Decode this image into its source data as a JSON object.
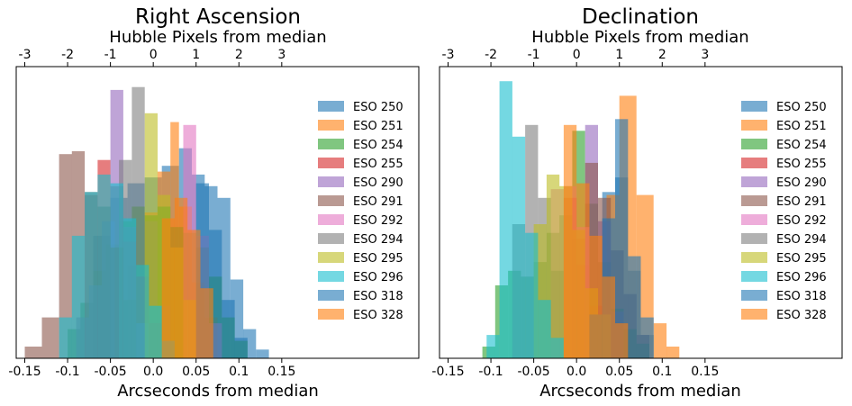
{
  "chart_data": [
    {
      "type": "histogram",
      "title": "Right Ascension",
      "xlabel": "Arcseconds from median",
      "top_xlabel": "Hubble Pixels from median",
      "xlim": [
        -0.16,
        0.31
      ],
      "ylim": [
        0,
        1.0
      ],
      "x_ticks": [
        {
          "value": -0.15,
          "label": "-0.15"
        },
        {
          "value": -0.1,
          "label": "-0.1"
        },
        {
          "value": -0.05,
          "label": "-0.05"
        },
        {
          "value": 0.0,
          "label": "0.0"
        },
        {
          "value": 0.05,
          "label": "0.05"
        },
        {
          "value": 0.1,
          "label": "0.1"
        },
        {
          "value": 0.15,
          "label": "0.15"
        }
      ],
      "top_ticks": [
        {
          "value": -0.15,
          "label": "-3"
        },
        {
          "value": -0.1,
          "label": "-2"
        },
        {
          "value": -0.05,
          "label": "-1"
        },
        {
          "value": 0.0,
          "label": "0"
        },
        {
          "value": 0.05,
          "label": "1"
        },
        {
          "value": 0.1,
          "label": "2"
        },
        {
          "value": 0.15,
          "label": "3"
        }
      ],
      "series": [
        {
          "name": "ESO 250",
          "color": "#1f77b4",
          "bins": [
            [
              -0.07,
              -0.05,
              0.42
            ],
            [
              -0.05,
              -0.03,
              0.55
            ],
            [
              -0.03,
              -0.01,
              0.6
            ],
            [
              -0.01,
              0.01,
              0.62
            ],
            [
              0.01,
              0.03,
              0.66
            ],
            [
              0.03,
              0.045,
              0.72
            ],
            [
              0.045,
              0.06,
              0.63
            ],
            [
              0.06,
              0.075,
              0.59
            ],
            [
              0.075,
              0.09,
              0.55
            ],
            [
              0.09,
              0.105,
              0.27
            ],
            [
              0.105,
              0.12,
              0.1
            ],
            [
              0.12,
              0.135,
              0.03
            ]
          ]
        },
        {
          "name": "ESO 251",
          "color": "#ff7f0e",
          "bins": [
            [
              -0.03,
              -0.01,
              0.32
            ],
            [
              -0.01,
              0.005,
              0.5
            ],
            [
              0.005,
              0.02,
              0.64
            ],
            [
              0.02,
              0.03,
              0.81
            ],
            [
              0.03,
              0.045,
              0.52
            ],
            [
              0.045,
              0.06,
              0.26
            ],
            [
              0.06,
              0.075,
              0.14
            ]
          ]
        },
        {
          "name": "ESO 254",
          "color": "#2ca02c",
          "bins": [
            [
              -0.1,
              -0.085,
              0.1
            ],
            [
              -0.085,
              -0.07,
              0.19
            ],
            [
              -0.07,
              -0.055,
              0.3
            ],
            [
              -0.055,
              -0.04,
              0.39
            ],
            [
              -0.04,
              -0.025,
              0.47
            ],
            [
              -0.025,
              -0.01,
              0.52
            ],
            [
              -0.01,
              0.005,
              0.49
            ],
            [
              0.005,
              0.02,
              0.52
            ],
            [
              0.02,
              0.035,
              0.45
            ],
            [
              0.035,
              0.05,
              0.43
            ],
            [
              0.05,
              0.065,
              0.38
            ],
            [
              0.065,
              0.08,
              0.28
            ],
            [
              0.08,
              0.095,
              0.14
            ],
            [
              0.095,
              0.11,
              0.06
            ]
          ]
        },
        {
          "name": "ESO 255",
          "color": "#d62728",
          "bins": [
            [
              -0.08,
              -0.065,
              0.56
            ],
            [
              -0.065,
              -0.05,
              0.68
            ],
            [
              -0.05,
              -0.035,
              0.59
            ],
            [
              -0.035,
              -0.02,
              0.4
            ],
            [
              -0.02,
              -0.005,
              0.28
            ],
            [
              -0.005,
              0.01,
              0.12
            ]
          ]
        },
        {
          "name": "ESO 290",
          "color": "#9467bd",
          "bins": [
            [
              -0.09,
              -0.075,
              0.14
            ],
            [
              -0.075,
              -0.06,
              0.25
            ],
            [
              -0.06,
              -0.045,
              0.47
            ],
            [
              -0.05,
              -0.035,
              0.92
            ],
            [
              -0.035,
              -0.02,
              0.45
            ],
            [
              -0.02,
              -0.005,
              0.12
            ]
          ]
        },
        {
          "name": "ESO 291",
          "color": "#8c564b",
          "bins": [
            [
              -0.15,
              -0.13,
              0.04
            ],
            [
              -0.13,
              -0.11,
              0.14
            ],
            [
              -0.11,
              -0.095,
              0.7
            ],
            [
              -0.095,
              -0.08,
              0.71
            ],
            [
              -0.08,
              -0.065,
              0.57
            ],
            [
              -0.065,
              -0.05,
              0.52
            ],
            [
              -0.05,
              -0.035,
              0.38
            ],
            [
              -0.035,
              -0.02,
              0.2
            ]
          ]
        },
        {
          "name": "ESO 292",
          "color": "#e377c2",
          "bins": [
            [
              0.035,
              0.05,
              0.8
            ],
            [
              0.05,
              0.065,
              0.42
            ],
            [
              0.065,
              0.08,
              0.12
            ]
          ]
        },
        {
          "name": "ESO 294",
          "color": "#7f7f7f",
          "bins": [
            [
              -0.04,
              -0.025,
              0.68
            ],
            [
              -0.025,
              -0.01,
              0.93
            ],
            [
              -0.01,
              0.005,
              0.47
            ],
            [
              0.005,
              0.02,
              0.18
            ]
          ]
        },
        {
          "name": "ESO 295",
          "color": "#bcbd22",
          "bins": [
            [
              -0.01,
              0.005,
              0.84
            ],
            [
              0.005,
              0.02,
              0.56
            ],
            [
              0.02,
              0.035,
              0.38
            ],
            [
              0.035,
              0.05,
              0.2
            ]
          ]
        },
        {
          "name": "ESO 296",
          "color": "#17becf",
          "bins": [
            [
              -0.11,
              -0.095,
              0.14
            ],
            [
              -0.095,
              -0.08,
              0.42
            ],
            [
              -0.08,
              -0.065,
              0.57
            ],
            [
              -0.065,
              -0.05,
              0.63
            ],
            [
              -0.05,
              -0.035,
              0.6
            ],
            [
              -0.035,
              -0.02,
              0.48
            ],
            [
              -0.02,
              -0.005,
              0.32
            ],
            [
              -0.005,
              0.01,
              0.18
            ],
            [
              0.01,
              0.025,
              0.06
            ]
          ]
        },
        {
          "name": "ESO 318",
          "color": "#1f77b4",
          "bins": [
            [
              0.05,
              0.065,
              0.6
            ],
            [
              0.065,
              0.08,
              0.44
            ],
            [
              0.08,
              0.095,
              0.2
            ],
            [
              0.095,
              0.11,
              0.07
            ]
          ]
        },
        {
          "name": "ESO 328",
          "color": "#ff7f0e",
          "bins": [
            [
              0.01,
              0.025,
              0.48
            ],
            [
              0.025,
              0.04,
              0.55
            ],
            [
              0.04,
              0.055,
              0.44
            ],
            [
              0.055,
              0.07,
              0.24
            ]
          ]
        }
      ]
    },
    {
      "type": "histogram",
      "title": "Declination",
      "xlabel": "Arcseconds from median",
      "top_xlabel": "Hubble Pixels from median",
      "xlim": [
        -0.16,
        0.31
      ],
      "ylim": [
        0,
        1.0
      ],
      "x_ticks": [
        {
          "value": -0.15,
          "label": "-0.15"
        },
        {
          "value": -0.1,
          "label": "-0.1"
        },
        {
          "value": -0.05,
          "label": "-0.05"
        },
        {
          "value": 0.0,
          "label": "0.0"
        },
        {
          "value": 0.05,
          "label": "0.05"
        },
        {
          "value": 0.1,
          "label": "0.1"
        },
        {
          "value": 0.15,
          "label": "0.15"
        }
      ],
      "top_ticks": [
        {
          "value": -0.15,
          "label": "-3"
        },
        {
          "value": -0.1,
          "label": "-2"
        },
        {
          "value": -0.05,
          "label": "-1"
        },
        {
          "value": 0.0,
          "label": "0"
        },
        {
          "value": 0.05,
          "label": "1"
        },
        {
          "value": 0.1,
          "label": "2"
        },
        {
          "value": 0.15,
          "label": "3"
        }
      ],
      "series": [
        {
          "name": "ESO 250",
          "color": "#1f77b4",
          "bins": [
            [
              0.015,
              0.03,
              0.15
            ],
            [
              0.03,
              0.045,
              0.57
            ],
            [
              0.045,
              0.06,
              0.62
            ],
            [
              0.06,
              0.075,
              0.3
            ],
            [
              0.075,
              0.09,
              0.08
            ]
          ]
        },
        {
          "name": "ESO 251",
          "color": "#ff7f0e",
          "bins": [
            [
              0.035,
              0.05,
              0.56
            ],
            [
              0.05,
              0.07,
              0.9
            ],
            [
              0.07,
              0.09,
              0.56
            ],
            [
              0.09,
              0.105,
              0.12
            ],
            [
              0.105,
              0.12,
              0.04
            ]
          ]
        },
        {
          "name": "ESO 254",
          "color": "#2ca02c",
          "bins": [
            [
              -0.11,
              -0.095,
              0.04
            ],
            [
              -0.095,
              -0.08,
              0.25
            ],
            [
              -0.08,
              -0.065,
              0.3
            ],
            [
              -0.065,
              -0.05,
              0.28
            ],
            [
              -0.05,
              -0.035,
              0.33
            ],
            [
              -0.035,
              -0.02,
              0.43
            ],
            [
              -0.02,
              -0.005,
              0.49
            ],
            [
              -0.005,
              0.01,
              0.78
            ],
            [
              0.01,
              0.025,
              0.53
            ],
            [
              0.025,
              0.04,
              0.33
            ],
            [
              0.04,
              0.055,
              0.17
            ],
            [
              0.055,
              0.07,
              0.1
            ],
            [
              0.07,
              0.085,
              0.05
            ]
          ]
        },
        {
          "name": "ESO 255",
          "color": "#d62728",
          "bins": [
            [
              -0.015,
              0.0,
              0.55
            ],
            [
              0.0,
              0.015,
              0.32
            ],
            [
              0.015,
              0.03,
              0.18
            ]
          ]
        },
        {
          "name": "ESO 290",
          "color": "#9467bd",
          "bins": [
            [
              0.01,
              0.025,
              0.8
            ],
            [
              0.025,
              0.04,
              0.47
            ],
            [
              0.04,
              0.055,
              0.16
            ]
          ]
        },
        {
          "name": "ESO 291",
          "color": "#8c564b",
          "bins": [
            [
              -0.005,
              0.01,
              0.41
            ],
            [
              0.01,
              0.025,
              0.67
            ],
            [
              0.025,
              0.04,
              0.55
            ],
            [
              0.04,
              0.055,
              0.37
            ],
            [
              0.055,
              0.07,
              0.22
            ],
            [
              0.07,
              0.085,
              0.08
            ]
          ]
        },
        {
          "name": "ESO 292",
          "color": "#e377c2",
          "bins": [
            [
              -0.03,
              -0.015,
              0.58
            ],
            [
              -0.015,
              0.0,
              0.59
            ],
            [
              0.0,
              0.015,
              0.45
            ]
          ]
        },
        {
          "name": "ESO 294",
          "color": "#7f7f7f",
          "bins": [
            [
              -0.075,
              -0.06,
              0.46
            ],
            [
              -0.06,
              -0.045,
              0.8
            ],
            [
              -0.045,
              -0.03,
              0.55
            ],
            [
              -0.03,
              -0.015,
              0.3
            ]
          ]
        },
        {
          "name": "ESO 295",
          "color": "#bcbd22",
          "bins": [
            [
              -0.05,
              -0.035,
              0.46
            ],
            [
              -0.035,
              -0.02,
              0.63
            ],
            [
              -0.02,
              -0.005,
              0.59
            ],
            [
              -0.005,
              0.01,
              0.44
            ],
            [
              0.01,
              0.025,
              0.24
            ],
            [
              0.025,
              0.04,
              0.15
            ]
          ]
        },
        {
          "name": "ESO 296",
          "color": "#17becf",
          "bins": [
            [
              -0.105,
              -0.09,
              0.08
            ],
            [
              -0.09,
              -0.075,
              0.95
            ],
            [
              -0.075,
              -0.06,
              0.76
            ],
            [
              -0.06,
              -0.045,
              0.43
            ],
            [
              -0.045,
              -0.03,
              0.2
            ],
            [
              -0.03,
              -0.015,
              0.07
            ]
          ]
        },
        {
          "name": "ESO 318",
          "color": "#1f77b4",
          "bins": [
            [
              0.015,
              0.03,
              0.15
            ],
            [
              0.03,
              0.045,
              0.48
            ],
            [
              0.045,
              0.06,
              0.82
            ],
            [
              0.06,
              0.075,
              0.35
            ],
            [
              0.075,
              0.09,
              0.14
            ]
          ]
        },
        {
          "name": "ESO 328",
          "color": "#ff7f0e",
          "bins": [
            [
              -0.015,
              0.0,
              0.8
            ],
            [
              0.0,
              0.015,
              0.6
            ],
            [
              0.015,
              0.03,
              0.42
            ],
            [
              0.03,
              0.045,
              0.28
            ],
            [
              0.045,
              0.06,
              0.12
            ]
          ]
        }
      ]
    }
  ]
}
